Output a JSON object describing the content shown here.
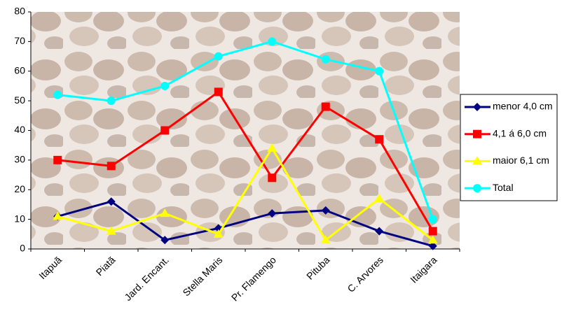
{
  "chart_data": {
    "type": "line",
    "categories": [
      "Itapuã",
      "Piatã",
      "Jard. Encant.",
      "Stella Maris",
      "Pr. Flamengo",
      "Pituba",
      "C. Arvores",
      "Itaigara"
    ],
    "series": [
      {
        "name": "menor 4,0 cm",
        "color": "#000080",
        "marker": "diamond",
        "values": [
          11,
          16,
          3,
          7,
          12,
          13,
          6,
          1
        ]
      },
      {
        "name": "4,1 á 6,0 cm",
        "color": "#ff0000",
        "marker": "square",
        "values": [
          30,
          28,
          40,
          53,
          24,
          48,
          37,
          6
        ]
      },
      {
        "name": "maior 6,1 cm",
        "color": "#ffff00",
        "marker": "triangle",
        "values": [
          11,
          6,
          12,
          5,
          34,
          3,
          17,
          3
        ]
      },
      {
        "name": "Total",
        "color": "#00ffff",
        "marker": "circle",
        "values": [
          52,
          50,
          55,
          65,
          70,
          64,
          60,
          10
        ]
      }
    ],
    "ylim": [
      0,
      80
    ],
    "yticks": [
      0,
      10,
      20,
      30,
      40,
      50,
      60,
      70,
      80
    ],
    "legend": "right"
  }
}
